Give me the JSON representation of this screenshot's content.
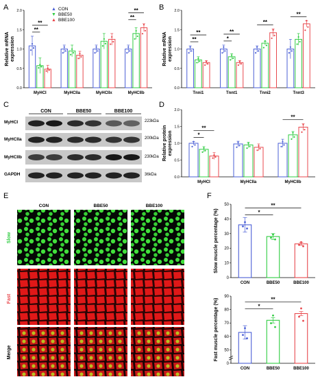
{
  "panel_letters": [
    "A",
    "B",
    "C",
    "D",
    "E",
    "F"
  ],
  "legend": [
    {
      "name": "CON",
      "color": "#4a5fd6"
    },
    {
      "name": "BBE50",
      "color": "#2ecc40"
    },
    {
      "name": "BBE100",
      "color": "#e8474c"
    }
  ],
  "chart_data": [
    {
      "panel": "A",
      "type": "bar",
      "ylabel": "Relative mRNA expression",
      "ylim": [
        0,
        2.0
      ],
      "yticks": [
        "0.0",
        "0.5",
        "1.0",
        "1.5",
        "2.0"
      ],
      "categories": [
        "MyHCI",
        "MyHCIIa",
        "MyHCIIx",
        "MyHCIIb"
      ],
      "series": [
        {
          "name": "CON",
          "values": [
            1.08,
            1.0,
            1.0,
            1.0
          ],
          "err": [
            0.25,
            0.1,
            0.1,
            0.1
          ]
        },
        {
          "name": "BBE50",
          "values": [
            0.57,
            0.95,
            1.2,
            1.4
          ],
          "err": [
            0.2,
            0.15,
            0.2,
            0.15
          ]
        },
        {
          "name": "BBE100",
          "values": [
            0.48,
            0.84,
            1.25,
            1.55
          ],
          "err": [
            0.1,
            0.1,
            0.15,
            0.1
          ]
        }
      ],
      "significance": [
        {
          "cat": 0,
          "from": 0,
          "to": 1,
          "text": "**"
        },
        {
          "cat": 0,
          "from": 0,
          "to": 2,
          "text": "**"
        },
        {
          "cat": 3,
          "from": 0,
          "to": 1,
          "text": "**"
        },
        {
          "cat": 3,
          "from": 0,
          "to": 2,
          "text": "**"
        }
      ]
    },
    {
      "panel": "B",
      "type": "bar",
      "ylabel": "Relative mRNA expression",
      "ylim": [
        0,
        2.0
      ],
      "yticks": [
        "0.0",
        "0.5",
        "1.0",
        "1.5",
        "2.0"
      ],
      "categories": [
        "Tnni1",
        "Tnnt1",
        "Tnni2",
        "Tnnt3"
      ],
      "series": [
        {
          "name": "CON",
          "values": [
            1.0,
            1.0,
            1.0,
            1.0
          ],
          "err": [
            0.08,
            0.1,
            0.08,
            0.25
          ]
        },
        {
          "name": "BBE50",
          "values": [
            0.72,
            0.8,
            1.15,
            1.25
          ],
          "err": [
            0.08,
            0.08,
            0.05,
            0.15
          ]
        },
        {
          "name": "BBE100",
          "values": [
            0.65,
            0.65,
            1.42,
            1.65
          ],
          "err": [
            0.05,
            0.05,
            0.1,
            0.08
          ]
        }
      ],
      "significance": [
        {
          "cat": 0,
          "from": 0,
          "to": 1,
          "text": "**"
        },
        {
          "cat": 0,
          "from": 0,
          "to": 2,
          "text": "**"
        },
        {
          "cat": 1,
          "from": 0,
          "to": 1,
          "text": "*"
        },
        {
          "cat": 1,
          "from": 0,
          "to": 2,
          "text": "**"
        },
        {
          "cat": 2,
          "from": 0,
          "to": 2,
          "text": "**"
        },
        {
          "cat": 3,
          "from": 0,
          "to": 2,
          "text": "**"
        }
      ]
    },
    {
      "panel": "D",
      "type": "bar",
      "ylabel": "Relative protein expression",
      "ylim": [
        0,
        2.0
      ],
      "yticks": [
        "0.0",
        "0.5",
        "1.0",
        "1.5",
        "2.0"
      ],
      "categories": [
        "MyHCI",
        "MyHCIIa",
        "MyHCIIb"
      ],
      "series": [
        {
          "name": "CON",
          "values": [
            1.0,
            0.98,
            1.0
          ],
          "err": [
            0.05,
            0.08,
            0.12
          ]
        },
        {
          "name": "BBE50",
          "values": [
            0.82,
            0.95,
            1.25
          ],
          "err": [
            0.08,
            0.08,
            0.1
          ]
        },
        {
          "name": "BBE100",
          "values": [
            0.62,
            0.88,
            1.48
          ],
          "err": [
            0.1,
            0.1,
            0.1
          ]
        }
      ],
      "significance": [
        {
          "cat": 0,
          "from": 0,
          "to": 1,
          "text": "*"
        },
        {
          "cat": 0,
          "from": 0,
          "to": 2,
          "text": "**"
        },
        {
          "cat": 2,
          "from": 0,
          "to": 2,
          "text": "**"
        }
      ]
    },
    {
      "panel": "F-top",
      "type": "bar",
      "ylabel": "Slow muscle percentage (%)",
      "ylim": [
        0,
        50
      ],
      "yticks": [
        "0",
        "10",
        "20",
        "30",
        "40",
        "50"
      ],
      "categories": [
        "CON",
        "BBE50",
        "BBE100"
      ],
      "values": [
        36,
        28,
        23
      ],
      "err": [
        5,
        2,
        1
      ],
      "significance": [
        {
          "from": 0,
          "to": 1,
          "text": "*"
        },
        {
          "from": 0,
          "to": 2,
          "text": "**"
        }
      ]
    },
    {
      "panel": "F-bottom",
      "type": "bar",
      "ylabel": "Fast muscle percentage (%)",
      "ylim": [
        0,
        90
      ],
      "yticks": [
        "0",
        "50",
        "60",
        "70",
        "80",
        "90"
      ],
      "categories": [
        "CON",
        "BBE50",
        "BBE100"
      ],
      "values": [
        63,
        72,
        77
      ],
      "err": [
        5,
        2,
        1.5
      ],
      "significance": [
        {
          "from": 0,
          "to": 1,
          "text": "*"
        },
        {
          "from": 0,
          "to": 2,
          "text": "**"
        }
      ]
    }
  ],
  "western_blot": {
    "groups": [
      "CON",
      "BBE50",
      "BBE100"
    ],
    "rows": [
      {
        "label": "MyHCI",
        "kda": "223kDa"
      },
      {
        "label": "MyHCIIa",
        "kda": "200kDa"
      },
      {
        "label": "MyHCIIb",
        "kda": "230kDa"
      },
      {
        "label": "GAPDH",
        "kda": "36kDa"
      }
    ]
  },
  "staining": {
    "columns": [
      "CON",
      "BBE50",
      "BBE100"
    ],
    "rows": [
      {
        "label": "Slow",
        "color": "#2ecc40"
      },
      {
        "label": "Fast",
        "color": "#e8474c"
      },
      {
        "label": "Merge",
        "color": "#000000"
      }
    ]
  }
}
